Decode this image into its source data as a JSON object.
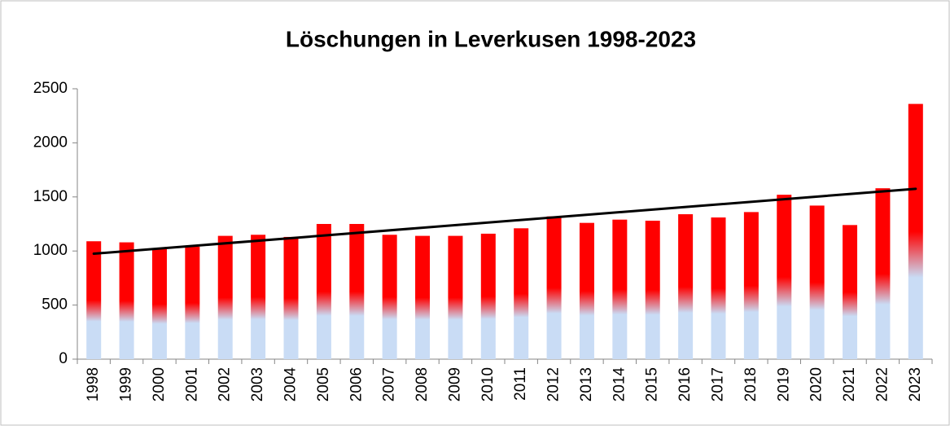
{
  "chart_data": {
    "type": "bar",
    "title": "Löschungen in Leverkusen 1998-2023",
    "categories": [
      "1998",
      "1999",
      "2000",
      "2001",
      "2002",
      "2003",
      "2004",
      "2005",
      "2006",
      "2007",
      "2008",
      "2009",
      "2010",
      "2011",
      "2012",
      "2013",
      "2014",
      "2015",
      "2016",
      "2017",
      "2018",
      "2019",
      "2020",
      "2021",
      "2022",
      "2023"
    ],
    "values": [
      1090,
      1080,
      1020,
      1040,
      1140,
      1150,
      1130,
      1250,
      1250,
      1150,
      1140,
      1140,
      1160,
      1210,
      1320,
      1260,
      1290,
      1280,
      1340,
      1310,
      1360,
      1520,
      1420,
      1240,
      1580,
      2360
    ],
    "color": "#ff0000",
    "color_bottom": "#c9dcf5",
    "trendline": {
      "color": "#000000",
      "values": [
        975,
        1575
      ]
    },
    "ylim": [
      0,
      2500
    ],
    "yticks": [
      0,
      500,
      1000,
      1500,
      2000,
      2500
    ],
    "grid": false
  }
}
